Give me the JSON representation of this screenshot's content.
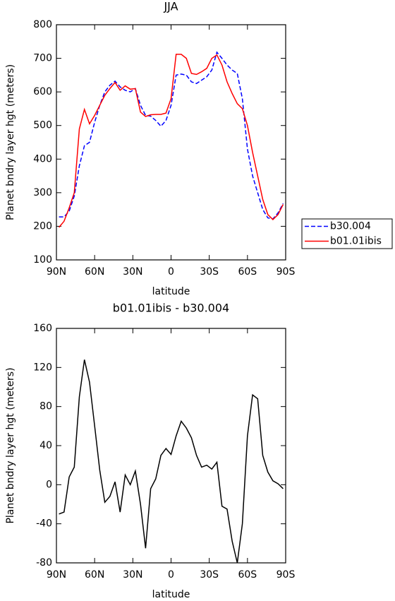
{
  "chart_data": [
    {
      "type": "line",
      "title": "JJA",
      "ylabel": "Planet bndry layer hgt (meters)",
      "xlabel": "latitude",
      "x": [
        88,
        84,
        80,
        76,
        72,
        68,
        64,
        60,
        56,
        52,
        48,
        44,
        40,
        36,
        32,
        28,
        24,
        20,
        16,
        12,
        8,
        4,
        0,
        -4,
        -8,
        -12,
        -16,
        -20,
        -24,
        -28,
        -32,
        -36,
        -40,
        -44,
        -48,
        -52,
        -56,
        -60,
        -64,
        -68,
        -72,
        -76,
        -80,
        -84,
        -88
      ],
      "series": [
        {
          "name": "b30.004",
          "color": "#0000ff",
          "dash": true,
          "values": [
            228,
            228,
            245,
            290,
            380,
            440,
            450,
            510,
            560,
            600,
            620,
            632,
            615,
            605,
            600,
            610,
            560,
            530,
            528,
            515,
            498,
            515,
            560,
            650,
            653,
            650,
            630,
            625,
            635,
            645,
            665,
            718,
            700,
            680,
            665,
            655,
            580,
            430,
            350,
            300,
            250,
            225,
            222,
            240,
            268
          ]
        },
        {
          "name": "b01.01ibis",
          "color": "#ff0000",
          "dash": false,
          "values": [
            197,
            215,
            255,
            300,
            490,
            548,
            505,
            530,
            560,
            590,
            610,
            628,
            605,
            618,
            608,
            610,
            540,
            527,
            532,
            533,
            533,
            537,
            580,
            712,
            712,
            700,
            655,
            652,
            660,
            670,
            700,
            710,
            680,
            630,
            595,
            565,
            550,
            500,
            420,
            350,
            280,
            235,
            220,
            235,
            265
          ]
        }
      ],
      "xlim": [
        90,
        -90
      ],
      "xticks": [
        {
          "value": 90,
          "label": "90N"
        },
        {
          "value": 60,
          "label": "60N"
        },
        {
          "value": 30,
          "label": "30N"
        },
        0,
        {
          "value": -30,
          "label": "30S"
        },
        {
          "value": -60,
          "label": "60S"
        },
        {
          "value": -90,
          "label": "90S"
        }
      ],
      "ylim": [
        100,
        800
      ],
      "yticks": [
        100,
        200,
        300,
        400,
        500,
        600,
        700,
        800
      ],
      "legend": "right"
    },
    {
      "type": "line",
      "title": "b01.01ibis - b30.004",
      "ylabel": "Planet bndry layer hgt (meters)",
      "xlabel": "latitude",
      "x": [
        88,
        84,
        80,
        76,
        72,
        68,
        64,
        60,
        56,
        52,
        48,
        44,
        40,
        36,
        32,
        28,
        24,
        20,
        16,
        12,
        8,
        4,
        0,
        -4,
        -8,
        -12,
        -16,
        -20,
        -24,
        -28,
        -32,
        -36,
        -40,
        -44,
        -48,
        -52,
        -56,
        -60,
        -64,
        -68,
        -72,
        -76,
        -80,
        -84,
        -88
      ],
      "series": [
        {
          "color": "#000000",
          "dash": false,
          "values": [
            -30,
            -28,
            8,
            18,
            90,
            128,
            105,
            60,
            15,
            -18,
            -12,
            3,
            -28,
            10,
            0,
            14,
            -20,
            -65,
            -4,
            6,
            30,
            37,
            31,
            50,
            65,
            58,
            48,
            30,
            18,
            20,
            16,
            23,
            -22,
            -25,
            -58,
            -80,
            -40,
            50,
            92,
            88,
            30,
            13,
            4,
            1,
            -4
          ]
        }
      ],
      "xlim": [
        90,
        -90
      ],
      "xticks": [
        {
          "value": 90,
          "label": "90N"
        },
        {
          "value": 60,
          "label": "60N"
        },
        {
          "value": 30,
          "label": "30N"
        },
        0,
        {
          "value": -30,
          "label": "30S"
        },
        {
          "value": -60,
          "label": "60S"
        },
        {
          "value": -90,
          "label": "90S"
        }
      ],
      "ylim": [
        -80,
        160
      ],
      "yticks": [
        -80,
        -40,
        0,
        40,
        80,
        120,
        160
      ]
    }
  ]
}
